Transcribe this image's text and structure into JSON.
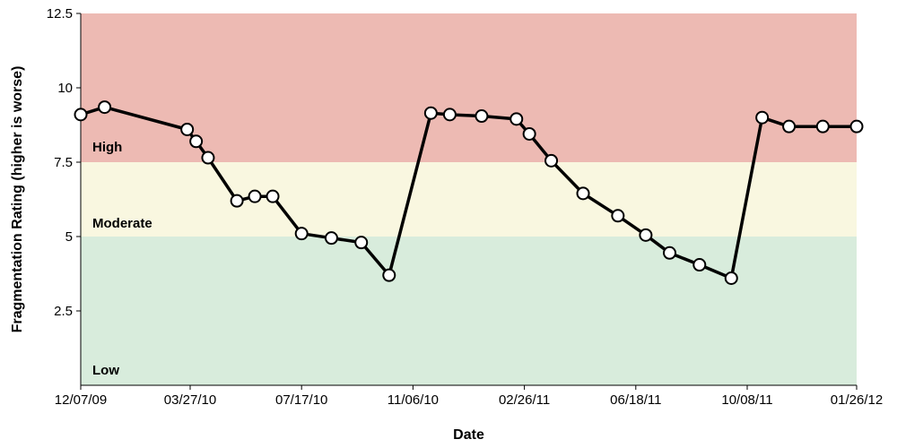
{
  "chart_data": {
    "type": "line",
    "xlabel": "Date",
    "ylabel": "Fragmentation Rating (higher is worse)",
    "ylim": [
      0,
      12.5
    ],
    "xlim": [
      "2009-12-07",
      "2012-01-26"
    ],
    "y_ticks": [
      2.5,
      5,
      7.5,
      10,
      12.5
    ],
    "y_tick_labels": [
      "2.5",
      "5",
      "7.5",
      "10",
      "12.5"
    ],
    "x_ticks": [
      "2009-12-07",
      "2010-03-27",
      "2010-07-17",
      "2010-11-06",
      "2011-02-26",
      "2011-06-18",
      "2011-10-08",
      "2012-01-26"
    ],
    "x_tick_labels": [
      "12/07/09",
      "03/27/10",
      "07/17/10",
      "11/06/10",
      "02/26/11",
      "06/18/11",
      "10/08/11",
      "01/26/12"
    ],
    "bands": [
      {
        "label": "Low",
        "from": 0,
        "to": 5,
        "color": "#d8ecdc"
      },
      {
        "label": "Moderate",
        "from": 5,
        "to": 7.5,
        "color": "#f9f7e0"
      },
      {
        "label": "High",
        "from": 7.5,
        "to": 12.5,
        "color": "#edbab3"
      }
    ],
    "grid": false,
    "legend": "none",
    "series": [
      {
        "color": "#000000",
        "x": [
          "2009-12-07",
          "2009-12-31",
          "2010-03-24",
          "2010-04-02",
          "2010-04-14",
          "2010-05-13",
          "2010-05-31",
          "2010-06-18",
          "2010-07-17",
          "2010-08-16",
          "2010-09-15",
          "2010-10-13",
          "2010-11-24",
          "2010-12-13",
          "2011-01-14",
          "2011-02-18",
          "2011-03-03",
          "2011-03-25",
          "2011-04-26",
          "2011-05-31",
          "2011-06-28",
          "2011-07-22",
          "2011-08-21",
          "2011-09-22",
          "2011-10-23",
          "2011-11-19",
          "2011-12-23",
          "2012-01-26"
        ],
        "values": [
          9.1,
          9.35,
          8.6,
          8.2,
          7.65,
          6.2,
          6.35,
          6.35,
          5.1,
          4.95,
          4.8,
          3.7,
          9.15,
          9.1,
          9.05,
          8.95,
          8.45,
          7.55,
          6.45,
          5.7,
          5.05,
          4.45,
          4.05,
          3.6,
          9.0,
          8.7,
          8.7,
          8.7
        ]
      }
    ]
  }
}
